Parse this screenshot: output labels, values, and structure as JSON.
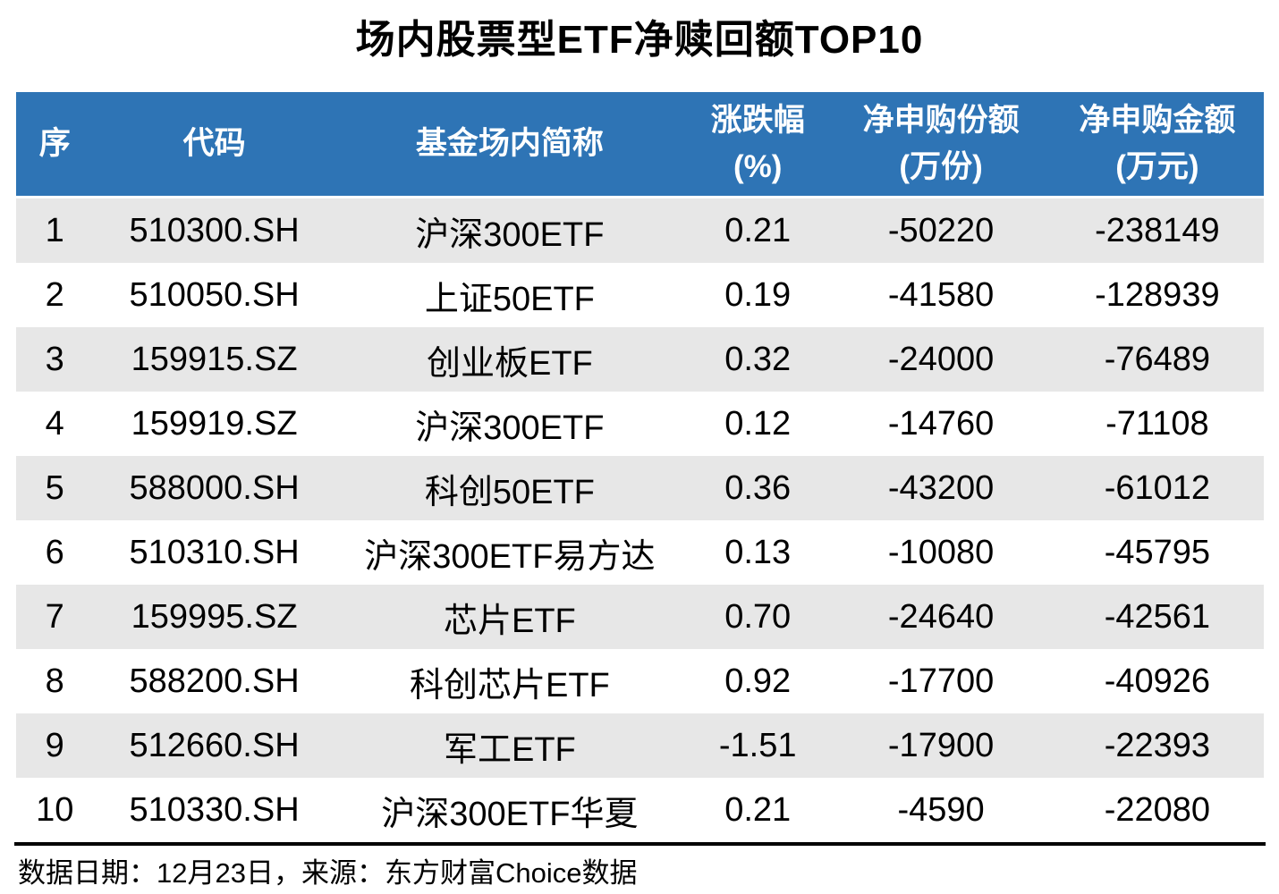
{
  "title": "场内股票型ETF净赎回额TOP10",
  "chart_data": {
    "type": "table",
    "title": "场内股票型ETF净赎回额TOP10",
    "columns": [
      {
        "line1": "序",
        "line2": ""
      },
      {
        "line1": "代码",
        "line2": ""
      },
      {
        "line1": "基金场内简称",
        "line2": ""
      },
      {
        "line1": "涨跌幅",
        "line2": "(%)"
      },
      {
        "line1": "净申购份额",
        "line2": "(万份)"
      },
      {
        "line1": "净申购金额",
        "line2": "(万元)"
      }
    ],
    "rows": [
      [
        "1",
        "510300.SH",
        "沪深300ETF",
        "0.21",
        "-50220",
        "-238149"
      ],
      [
        "2",
        "510050.SH",
        "上证50ETF",
        "0.19",
        "-41580",
        "-128939"
      ],
      [
        "3",
        "159915.SZ",
        "创业板ETF",
        "0.32",
        "-24000",
        "-76489"
      ],
      [
        "4",
        "159919.SZ",
        "沪深300ETF",
        "0.12",
        "-14760",
        "-71108"
      ],
      [
        "5",
        "588000.SH",
        "科创50ETF",
        "0.36",
        "-43200",
        "-61012"
      ],
      [
        "6",
        "510310.SH",
        "沪深300ETF易方达",
        "0.13",
        "-10080",
        "-45795"
      ],
      [
        "7",
        "159995.SZ",
        "芯片ETF",
        "0.70",
        "-24640",
        "-42561"
      ],
      [
        "8",
        "588200.SH",
        "科创芯片ETF",
        "0.92",
        "-17700",
        "-40926"
      ],
      [
        "9",
        "512660.SH",
        "军工ETF",
        "-1.51",
        "-17900",
        "-22393"
      ],
      [
        "10",
        "510330.SH",
        "沪深300ETF华夏",
        "0.21",
        "-4590",
        "-22080"
      ]
    ]
  },
  "footer": {
    "note": "数据日期：12月23日，来源：东方财富Choice数据"
  },
  "colors": {
    "header_bg": "#2E74B5",
    "header_text": "#FFFFFF",
    "row_stripe": "#E7E7E7",
    "row_plain": "#FFFFFF",
    "divider": "#000000"
  }
}
